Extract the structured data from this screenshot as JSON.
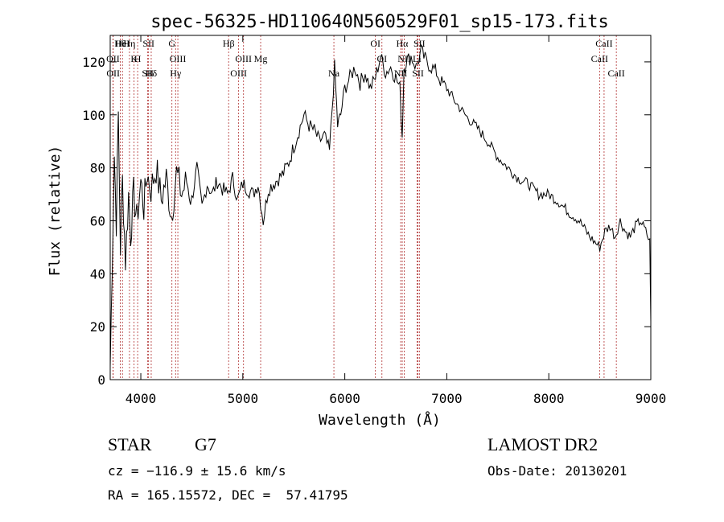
{
  "chart_data": {
    "type": "line",
    "title": "spec-56325-HD110640N560529F01_sp15-173.fits",
    "xlabel": "Wavelength (Å)",
    "ylabel": "Flux (relative)",
    "xlim": [
      3700,
      9000
    ],
    "ylim": [
      0,
      130
    ],
    "x_ticks": [
      "4000",
      "5000",
      "6000",
      "7000",
      "8000",
      "9000"
    ],
    "y_ticks": [
      "0",
      "20",
      "40",
      "60",
      "80",
      "100",
      "120"
    ],
    "x_tick_values": [
      4000,
      5000,
      6000,
      7000,
      8000,
      9000
    ],
    "y_tick_values": [
      0,
      20,
      40,
      60,
      80,
      100,
      120
    ],
    "grid": false,
    "series": [
      {
        "x": [
          3700,
          3720,
          3740,
          3760,
          3780,
          3800,
          3820,
          3850,
          3880,
          3900,
          3930,
          3960,
          4000,
          4030,
          4060,
          4100,
          4150,
          4200,
          4250,
          4300,
          4350,
          4400,
          4450,
          4500,
          4550,
          4600,
          4650,
          4700,
          4750,
          4800,
          4850,
          4900,
          4950,
          5000,
          5050,
          5100,
          5150,
          5200,
          5250,
          5300,
          5350,
          5400,
          5450,
          5500,
          5550,
          5600,
          5650,
          5700,
          5750,
          5800,
          5850,
          5900,
          5930,
          5960,
          6000,
          6050,
          6100,
          6150,
          6200,
          6250,
          6300,
          6350,
          6400,
          6450,
          6500,
          6540,
          6563,
          6580,
          6600,
          6650,
          6700,
          6750,
          6800,
          6850,
          6900,
          6950,
          7000,
          7100,
          7200,
          7300,
          7400,
          7500,
          7600,
          7700,
          7800,
          7900,
          8000,
          8100,
          8200,
          8300,
          8400,
          8450,
          8500,
          8550,
          8600,
          8650,
          8700,
          8750,
          8800,
          8850,
          8900,
          8950,
          8990,
          9000
        ],
        "y": [
          5,
          45,
          85,
          60,
          100,
          50,
          75,
          45,
          70,
          55,
          70,
          60,
          75,
          65,
          78,
          72,
          80,
          68,
          76,
          62,
          78,
          70,
          75,
          68,
          80,
          65,
          74,
          70,
          75,
          72,
          70,
          76,
          68,
          74,
          72,
          70,
          74,
          60,
          72,
          74,
          76,
          78,
          82,
          88,
          94,
          100,
          96,
          94,
          90,
          92,
          86,
          118,
          96,
          100,
          110,
          114,
          118,
          112,
          116,
          110,
          114,
          122,
          116,
          118,
          114,
          110,
          92,
          118,
          120,
          122,
          118,
          124,
          120,
          118,
          116,
          112,
          110,
          104,
          99,
          95,
          90,
          84,
          80,
          76,
          74,
          70,
          70,
          67,
          63,
          60,
          54,
          52,
          50,
          56,
          58,
          54,
          60,
          56,
          54,
          58,
          60,
          56,
          52,
          22
        ]
      }
    ],
    "lines": [
      {
        "label": "Hθ",
        "x": 3798
      },
      {
        "label": "OII",
        "x": 3727
      },
      {
        "label": "OII",
        "x": 3729
      },
      {
        "label": "HeI",
        "x": 3820
      },
      {
        "label": "K",
        "x": 3934
      },
      {
        "label": "SII",
        "x": 4068
      },
      {
        "label": "Hη",
        "x": 3889
      },
      {
        "label": "H",
        "x": 3969
      },
      {
        "label": "Hδ",
        "x": 4102
      },
      {
        "label": "SII",
        "x": 4076
      },
      {
        "label": "OIII",
        "x": 4363
      },
      {
        "label": "Hγ",
        "x": 4341
      },
      {
        "label": "G",
        "x": 4305
      },
      {
        "label": "OIII",
        "x": 5007
      },
      {
        "label": "OIII",
        "x": 4959
      },
      {
        "label": "Hβ",
        "x": 4861
      },
      {
        "label": "Mg",
        "x": 5175
      },
      {
        "label": "Na",
        "x": 5893
      },
      {
        "label": "OI",
        "x": 6300
      },
      {
        "label": "OI",
        "x": 6364
      },
      {
        "label": "NII",
        "x": 6548
      },
      {
        "label": "Hα",
        "x": 6563
      },
      {
        "label": "NII",
        "x": 6583
      },
      {
        "label": "SII",
        "x": 6717
      },
      {
        "label": "SII",
        "x": 6731
      },
      {
        "label": "Li",
        "x": 6708
      },
      {
        "label": "CaII",
        "x": 8662
      },
      {
        "label": "CaII",
        "x": 8542
      },
      {
        "label": "CaII",
        "x": 8498
      }
    ]
  },
  "info": {
    "object_type": "STAR",
    "subclass": "G7",
    "survey": "LAMOST DR2",
    "cz": "cz = −116.9 ± 15.6 km/s",
    "obs_date": "Obs-Date: 20130201",
    "coords": "RA = 165.15572, DEC =  57.41795"
  },
  "colors": {
    "spectrum": "#000000",
    "line_marker": "#b03030",
    "text": "#000000"
  }
}
